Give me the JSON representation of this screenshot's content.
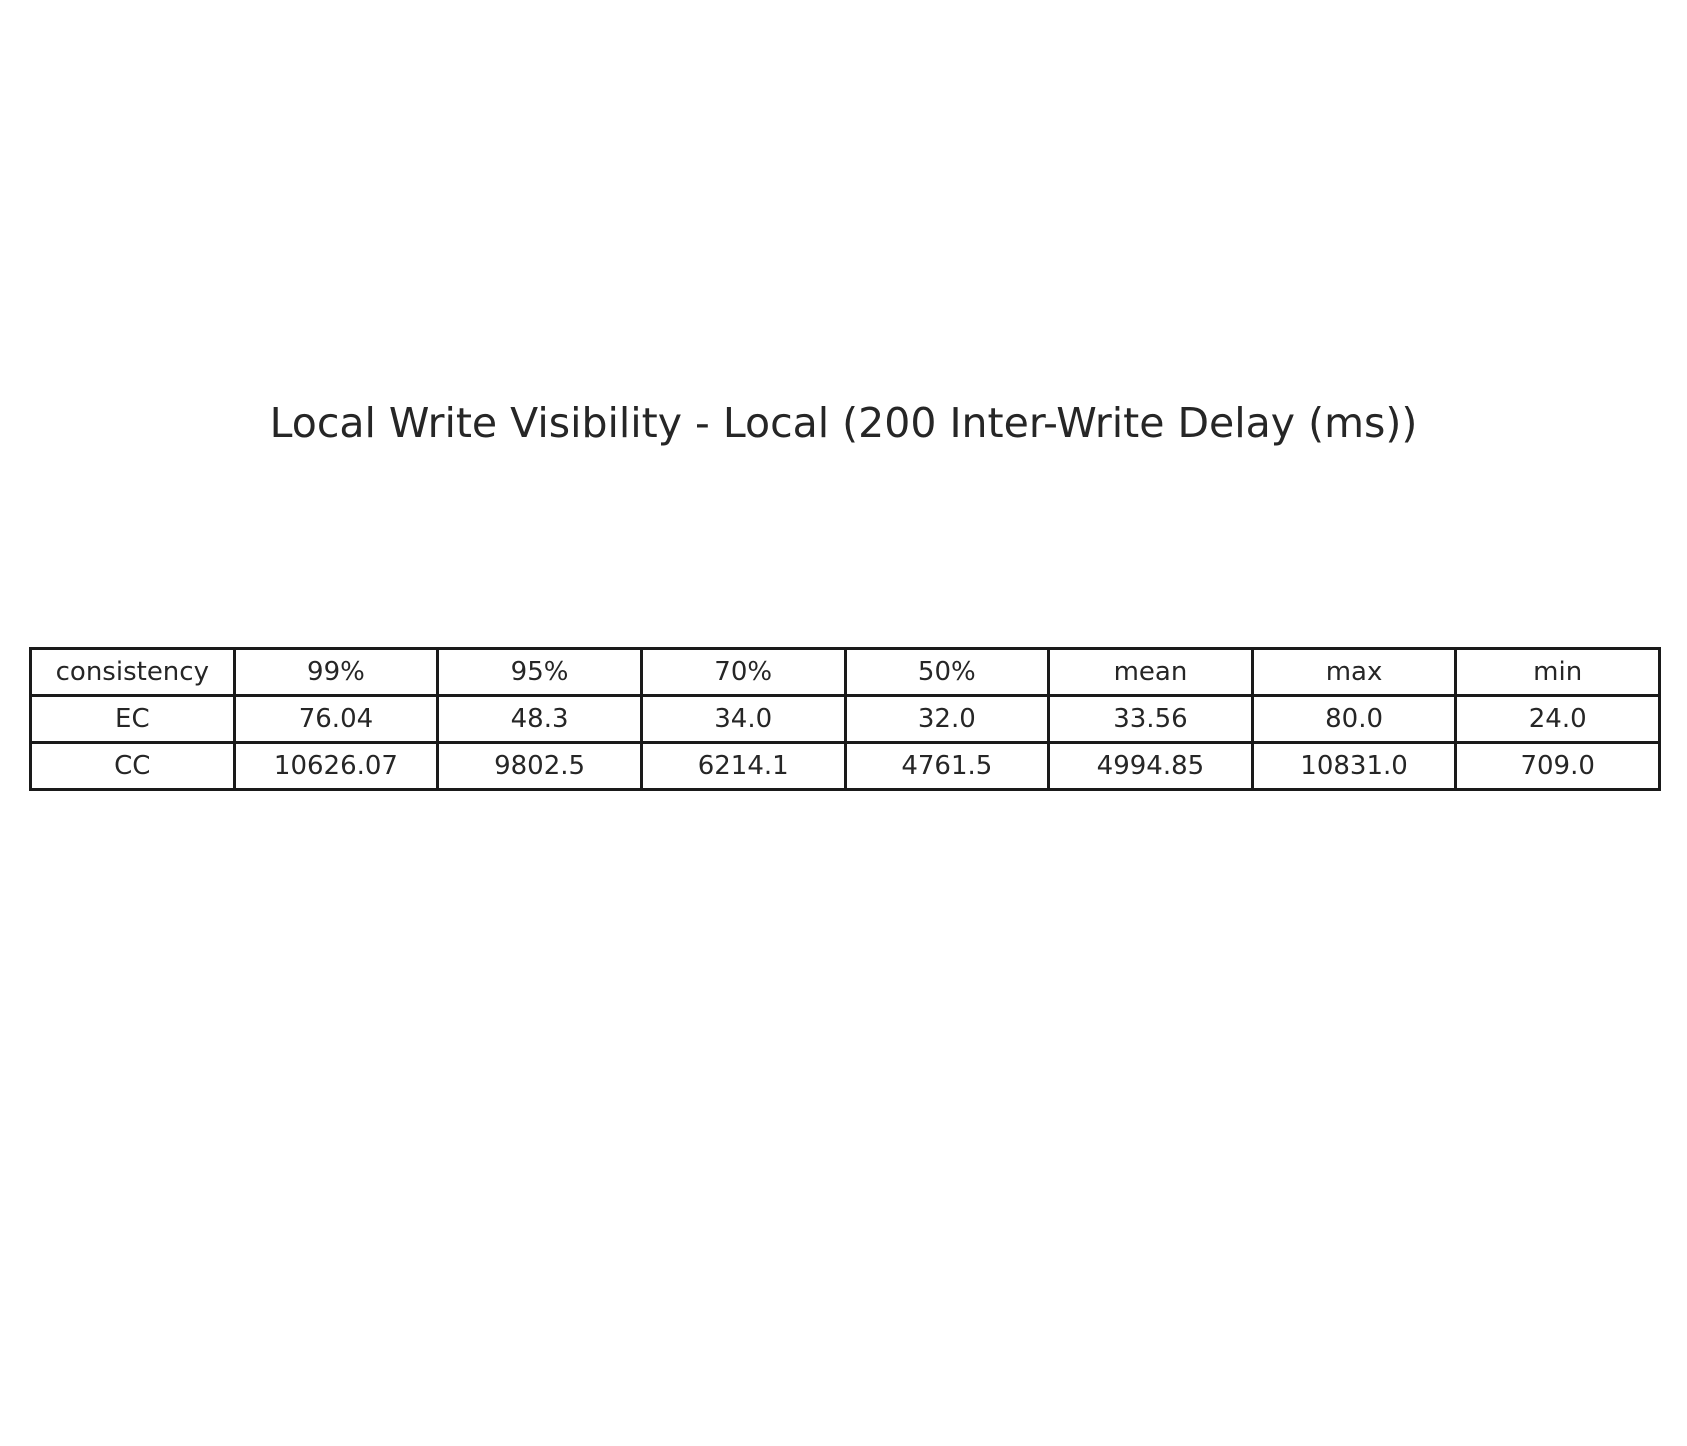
{
  "chart_data": {
    "type": "table",
    "title": "Local Write Visibility - Local (200 Inter-Write Delay (ms))",
    "columns": [
      "consistency",
      "99%",
      "95%",
      "70%",
      "50%",
      "mean",
      "max",
      "min"
    ],
    "rows": [
      [
        "EC",
        "76.04",
        "48.3",
        "34.0",
        "32.0",
        "33.56",
        "80.0",
        "24.0"
      ],
      [
        "CC",
        "10626.07",
        "9802.5",
        "6214.1",
        "4761.5",
        "4994.85",
        "10831.0",
        "709.0"
      ]
    ]
  }
}
